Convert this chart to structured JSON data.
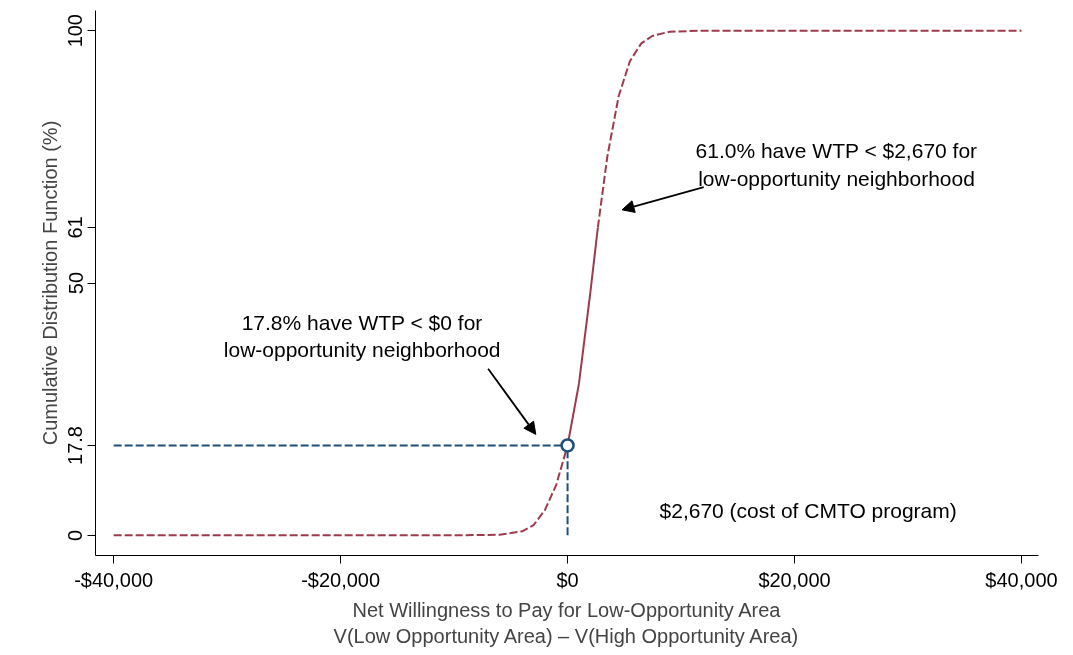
{
  "chart_data": {
    "type": "line",
    "xlabel": "Net Willingness to Pay for Low-Opportunity Area\nV(Low Opportunity Area) – V(High Opportunity Area)",
    "ylabel": "Cumulative Distribution Function (%)",
    "xlim": [
      -41600,
      41500
    ],
    "ylim": [
      -4,
      104
    ],
    "xticks": [
      {
        "value": -40000,
        "label": "-$40,000"
      },
      {
        "value": -20000,
        "label": "-$20,000"
      },
      {
        "value": 0,
        "label": "$0"
      },
      {
        "value": 20000,
        "label": "$20,000"
      },
      {
        "value": 40000,
        "label": "$40,000"
      }
    ],
    "yticks": [
      0,
      17.8,
      50,
      61,
      100
    ],
    "grid": false,
    "series": [
      {
        "color": "#9e3a4b",
        "line_style": "dashed",
        "x": [
          -40000,
          -10000,
          -6000,
          -4000,
          -3000,
          -2000,
          -1000,
          0
        ],
        "values": [
          0,
          0,
          0.1,
          0.8,
          2,
          5,
          10,
          17.8
        ]
      },
      {
        "color": "#9e3a4b",
        "line_style": "solid",
        "x": [
          0,
          1000,
          2000,
          2670
        ],
        "values": [
          17.8,
          30,
          48,
          61
        ]
      },
      {
        "color": "#9e3a4b",
        "line_style": "dashed",
        "x": [
          2670,
          3500,
          4500,
          5500,
          6500,
          7500,
          9000,
          12000,
          40000
        ],
        "values": [
          61,
          75,
          87,
          94,
          97.5,
          99,
          99.8,
          100,
          100
        ]
      },
      {
        "color": "#1f4e79",
        "line_style": "dashed",
        "x": [
          -40000,
          0
        ],
        "values": [
          17.8,
          17.8
        ]
      },
      {
        "color": "#1f4e79",
        "line_style": "dashed",
        "x": [
          0,
          0
        ],
        "values": [
          0,
          17.8
        ]
      },
      {
        "type": "scatter",
        "color": "#1f4e79",
        "marker": "circle",
        "x": [
          0
        ],
        "values": [
          17.8
        ]
      }
    ],
    "annotations": [
      "17.8% have WTP < $0 for\nlow-opportunity neighborhood",
      "61.0% have WTP < $2,670 for\nlow-opportunity neighborhood",
      "$2,670 (cost of CMTO program)"
    ]
  }
}
